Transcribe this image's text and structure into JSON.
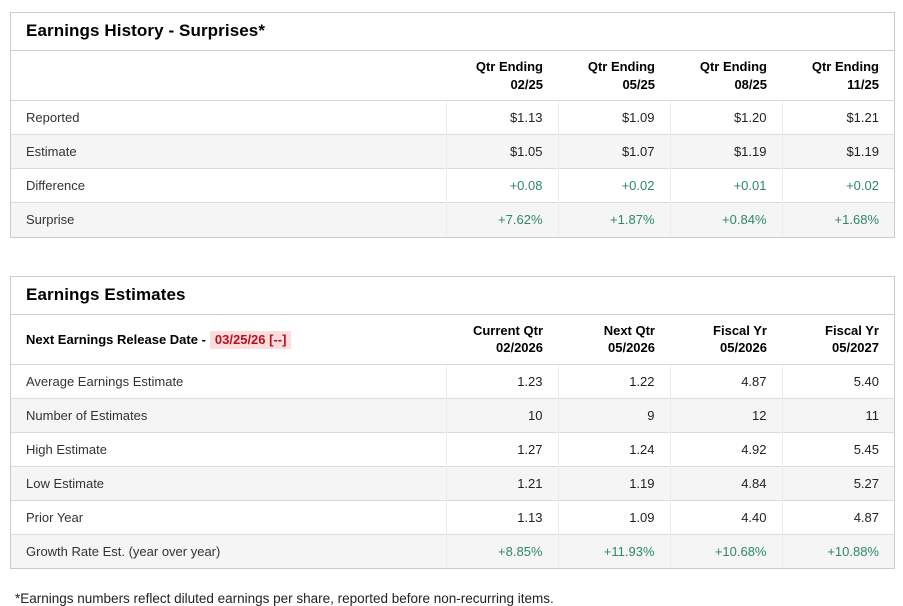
{
  "colors": {
    "positive_green": "#2d8769",
    "alert_red": "#c00d1e",
    "alert_red_highlight": "#fbdede",
    "alt_row_bg": "#f5f5f5",
    "table_border": "#cccccc"
  },
  "earnings_history": {
    "title": "Earnings History - Surprises*",
    "columns": [
      {
        "line1": "Qtr Ending",
        "line2": "02/25"
      },
      {
        "line1": "Qtr Ending",
        "line2": "05/25"
      },
      {
        "line1": "Qtr Ending",
        "line2": "08/25"
      },
      {
        "line1": "Qtr Ending",
        "line2": "11/25"
      }
    ],
    "rows": [
      {
        "label": "Reported",
        "values": [
          "$1.13",
          "$1.09",
          "$1.20",
          "$1.21"
        ]
      },
      {
        "label": "Estimate",
        "values": [
          "$1.05",
          "$1.07",
          "$1.19",
          "$1.19"
        ]
      },
      {
        "label": "Difference",
        "values": [
          "+0.08",
          "+0.02",
          "+0.01",
          "+0.02"
        ]
      },
      {
        "label": "Surprise",
        "values": [
          "+7.62%",
          "+1.87%",
          "+0.84%",
          "+1.68%"
        ]
      }
    ]
  },
  "earnings_estimates": {
    "title": "Earnings Estimates",
    "release_date_label": "Next Earnings Release Date -",
    "release_date_value": "03/25/26 [--]",
    "columns": [
      {
        "line1": "Current Qtr",
        "line2": "02/2026"
      },
      {
        "line1": "Next Qtr",
        "line2": "05/2026"
      },
      {
        "line1": "Fiscal Yr",
        "line2": "05/2026"
      },
      {
        "line1": "Fiscal Yr",
        "line2": "05/2027"
      }
    ],
    "rows": [
      {
        "label": "Average Earnings Estimate",
        "values": [
          "1.23",
          "1.22",
          "4.87",
          "5.40"
        ]
      },
      {
        "label": "Number of Estimates",
        "values": [
          "10",
          "9",
          "12",
          "11"
        ]
      },
      {
        "label": "High Estimate",
        "values": [
          "1.27",
          "1.24",
          "4.92",
          "5.45"
        ]
      },
      {
        "label": "Low Estimate",
        "values": [
          "1.21",
          "1.19",
          "4.84",
          "5.27"
        ]
      },
      {
        "label": "Prior Year",
        "values": [
          "1.13",
          "1.09",
          "4.40",
          "4.87"
        ]
      },
      {
        "label": "Growth Rate Est. (year over year)",
        "values": [
          "+8.85%",
          "+11.93%",
          "+10.68%",
          "+10.88%"
        ]
      }
    ]
  },
  "footnote": "*Earnings numbers reflect diluted earnings per share, reported before non-recurring items."
}
